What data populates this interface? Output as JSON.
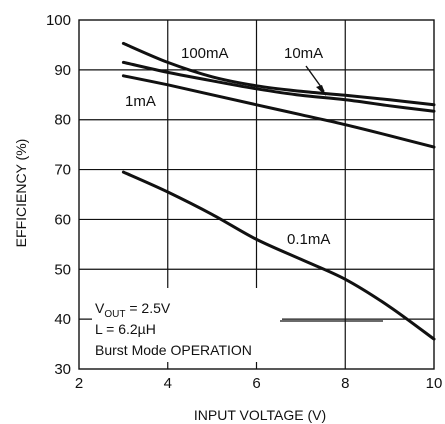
{
  "chart_data": {
    "type": "line",
    "title": "",
    "xlabel": "INPUT VOLTAGE (V)",
    "ylabel": "EFFICIENCY (%)",
    "xlim": [
      2,
      10
    ],
    "ylim": [
      30,
      100
    ],
    "x_ticks": [
      2,
      4,
      6,
      8,
      10
    ],
    "y_ticks": [
      30,
      40,
      50,
      60,
      70,
      80,
      90,
      100
    ],
    "grid": true,
    "line_color": "#111111",
    "series": [
      {
        "name": "100mA",
        "x": [
          3,
          4,
          5,
          6,
          7,
          8,
          9,
          10
        ],
        "y": [
          95.3,
          91.5,
          88.6,
          86.8,
          85.7,
          84.9,
          84.0,
          83.0
        ]
      },
      {
        "name": "10mA",
        "x": [
          3,
          4,
          5,
          6,
          7,
          8,
          9,
          10
        ],
        "y": [
          91.5,
          89.5,
          87.8,
          86.2,
          84.9,
          84.0,
          82.8,
          81.7
        ]
      },
      {
        "name": "1mA",
        "x": [
          3,
          4,
          5,
          6,
          7,
          8,
          9,
          10
        ],
        "y": [
          88.8,
          87.0,
          85.0,
          83.0,
          81.0,
          79.0,
          76.8,
          74.5
        ]
      },
      {
        "name": "0.1mA",
        "x": [
          3,
          4,
          5,
          6,
          7,
          8,
          9,
          10
        ],
        "y": [
          69.5,
          65.5,
          61.0,
          56.0,
          52.0,
          48.0,
          42.5,
          36.0
        ]
      }
    ],
    "annotation": {
      "vout_prefix": "V",
      "vout_sub": "OUT",
      "vout_value": " = 2.5V",
      "inductance": "L = 6.2µH",
      "mode": "Burst Mode OPERATION"
    }
  }
}
